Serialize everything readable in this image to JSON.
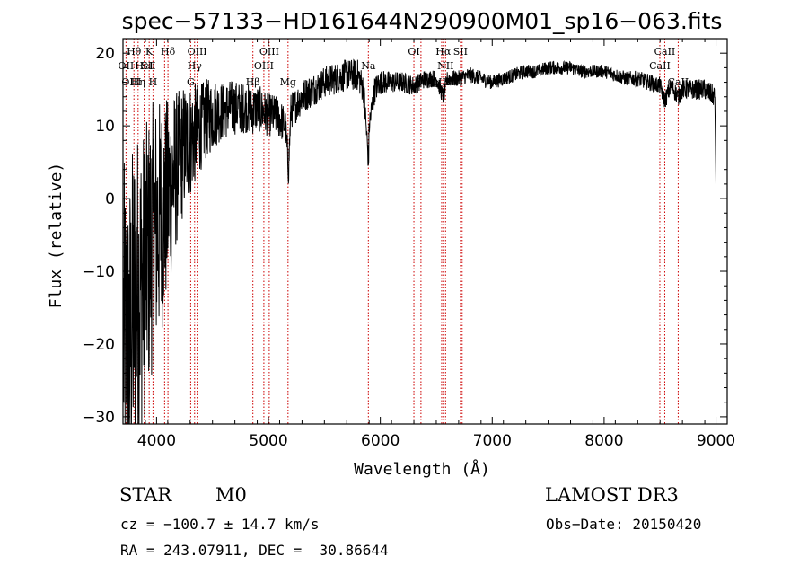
{
  "chart_data": {
    "type": "line",
    "title": "spec−57133−HD161644N290900M01_sp16−063.fits",
    "xlabel": "Wavelength (Å)",
    "ylabel": "Flux (relative)",
    "xlim": [
      3700,
      9100
    ],
    "ylim": [
      -31,
      22
    ],
    "xticks": [
      4000,
      5000,
      6000,
      7000,
      8000,
      9000
    ],
    "yticks": [
      -30,
      -20,
      -10,
      0,
      10,
      20
    ],
    "ytick_labels": [
      "−30",
      "−20",
      "−10",
      "0",
      "10",
      "20"
    ],
    "line_color": "#000000",
    "marker_color": "#cc0000",
    "spectrum_anchor": {
      "x": [
        3700,
        3750,
        3800,
        3850,
        3900,
        3950,
        4000,
        4050,
        4100,
        4150,
        4200,
        4250,
        4300,
        4350,
        4400,
        4450,
        4500,
        4550,
        4600,
        4650,
        4700,
        4750,
        4800,
        4850,
        4900,
        4950,
        5000,
        5050,
        5100,
        5150,
        5180,
        5200,
        5250,
        5300,
        5400,
        5500,
        5600,
        5700,
        5800,
        5850,
        5895,
        5900,
        5950,
        6000,
        6100,
        6200,
        6300,
        6400,
        6500,
        6563,
        6600,
        6700,
        6800,
        6900,
        7000,
        7100,
        7200,
        7300,
        7400,
        7500,
        7600,
        7700,
        7800,
        7900,
        8000,
        8100,
        8200,
        8300,
        8400,
        8500,
        8542,
        8600,
        8662,
        8700,
        8800,
        8900,
        8990,
        9000
      ],
      "y": [
        -18,
        -22,
        -14,
        -12,
        -10,
        -6,
        -4,
        -2,
        0,
        3,
        5,
        7,
        8,
        9,
        10,
        11,
        11.5,
        12,
        12,
        12.5,
        12.5,
        12.5,
        12.5,
        12,
        12.5,
        12,
        11.5,
        11.5,
        11,
        10,
        4,
        12,
        13,
        14,
        15,
        16,
        16.5,
        17,
        17,
        15,
        5,
        10,
        15,
        16,
        16,
        16,
        15.5,
        16.5,
        16.5,
        14,
        16.5,
        16.5,
        17,
        16.5,
        16,
        16.5,
        17,
        17.5,
        17.5,
        18,
        18,
        18,
        17.5,
        17.5,
        17.5,
        17,
        16.5,
        16.5,
        16,
        15.5,
        13.5,
        15.5,
        14,
        15,
        15,
        15,
        14,
        2
      ]
    },
    "noise": {
      "x": [
        3700,
        3800,
        3900,
        4000,
        4100,
        4200,
        4300,
        4400,
        4600,
        4800,
        5000,
        5200,
        5500,
        5800,
        6100,
        6500,
        7000,
        8000,
        8500,
        9000
      ],
      "amplitude": [
        24,
        24,
        20,
        18,
        14,
        10,
        8,
        6,
        4,
        3.5,
        3,
        2.5,
        2.2,
        2.2,
        1.5,
        1.2,
        1.0,
        0.9,
        1.2,
        1.5
      ]
    },
    "annotations": [
      {
        "text": "Hθ",
        "x": 3798,
        "row": 1,
        "dx": 0
      },
      {
        "text": "OII",
        "x": 3727,
        "row": 2,
        "dx": 0
      },
      {
        "text": "OIII",
        "x": 3727,
        "row": 3,
        "dx": 6
      },
      {
        "text": "Hη",
        "x": 3835,
        "row": 3,
        "dx": 0
      },
      {
        "text": "K",
        "x": 3934,
        "row": 1,
        "dx": 0
      },
      {
        "text": "HeI",
        "x": 3889,
        "row": 2,
        "dx": 0
      },
      {
        "text": "SII",
        "x": 4072,
        "row": 2,
        "dx": -18
      },
      {
        "text": "H",
        "x": 3968,
        "row": 3,
        "dx": 0
      },
      {
        "text": "Hδ",
        "x": 4102,
        "row": 1,
        "dx": 0
      },
      {
        "text": "OIII",
        "x": 4363,
        "row": 1,
        "dx": 0
      },
      {
        "text": "Hγ",
        "x": 4340,
        "row": 2,
        "dx": 0
      },
      {
        "text": "G",
        "x": 4305,
        "row": 3,
        "dx": 0
      },
      {
        "text": "Hβ",
        "x": 4861,
        "row": 3,
        "dx": 0
      },
      {
        "text": "OIII",
        "x": 5007,
        "row": 1,
        "dx": 0
      },
      {
        "text": "OIII",
        "x": 4959,
        "row": 2,
        "dx": 0
      },
      {
        "text": "Mg",
        "x": 5175,
        "row": 3,
        "dx": 0
      },
      {
        "text": "Na",
        "x": 5893,
        "row": 2,
        "dx": 0
      },
      {
        "text": "OI",
        "x": 6300,
        "row": 1,
        "dx": 0
      },
      {
        "text": "OI",
        "x": 6363,
        "row": 3,
        "dx": 0
      },
      {
        "text": "Hα",
        "x": 6563,
        "row": 1,
        "dx": 0
      },
      {
        "text": "SII",
        "x": 6716,
        "row": 1,
        "dx": 0
      },
      {
        "text": "NII",
        "x": 6583,
        "row": 2,
        "dx": 0
      },
      {
        "text": "NII",
        "x": 6548,
        "row": 3,
        "dx": 0
      },
      {
        "text": "SII",
        "x": 6731,
        "row": 3,
        "dx": -12
      },
      {
        "text": "CaII",
        "x": 8542,
        "row": 1,
        "dx": 0
      },
      {
        "text": "CaII",
        "x": 8498,
        "row": 2,
        "dx": 0
      },
      {
        "text": "CaII",
        "x": 8662,
        "row": 3,
        "dx": 0
      }
    ],
    "marker_lines": [
      3727,
      3798,
      3835,
      3889,
      3934,
      3968,
      4072,
      4102,
      4305,
      4340,
      4363,
      4861,
      4959,
      5007,
      5175,
      5893,
      6300,
      6363,
      6548,
      6563,
      6583,
      6716,
      6731,
      8498,
      8542,
      8662
    ]
  },
  "info": {
    "object_type": "STAR",
    "subclass": "M0",
    "survey": "LAMOST DR3",
    "cz": "cz = −100.7 ± 14.7 km/s",
    "obs_date": "Obs−Date: 20150420",
    "coords": "RA = 243.07911, DEC =  30.86644"
  }
}
